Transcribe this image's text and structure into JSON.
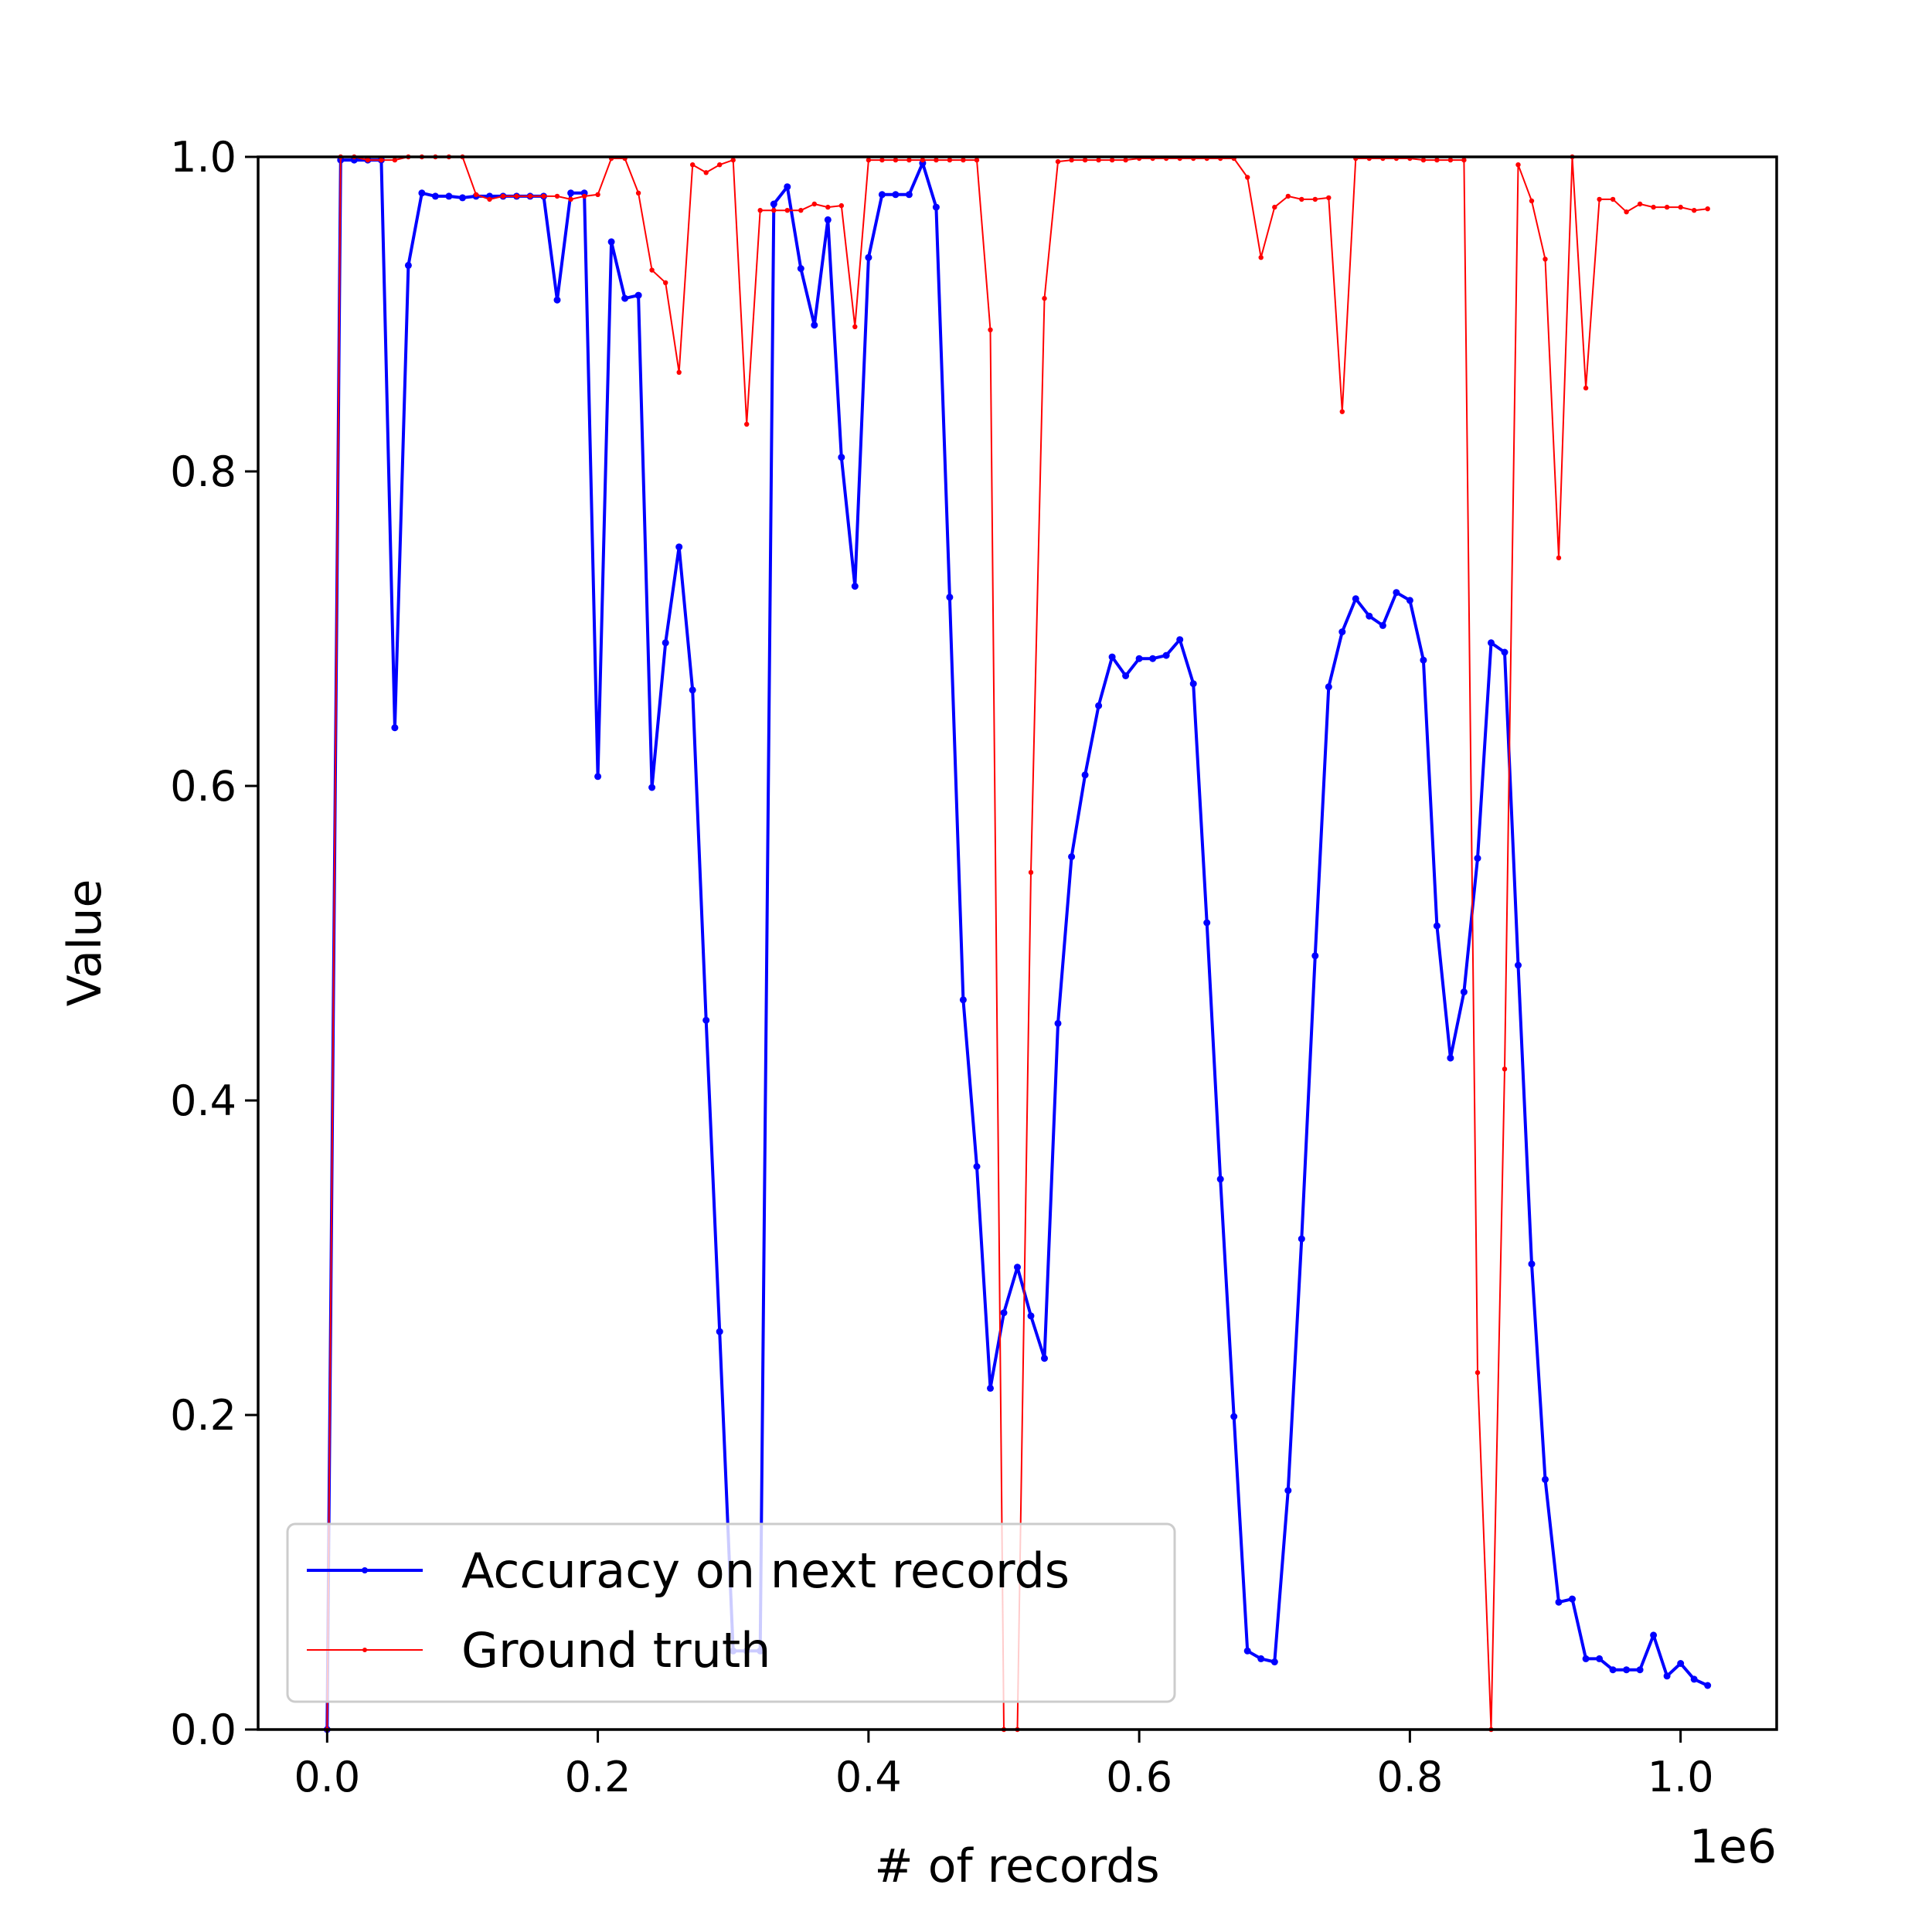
{
  "chart_data": {
    "type": "line",
    "title": "",
    "xlabel": "# of records",
    "ylabel": "Value",
    "x_offset_label": "1e6",
    "xlim": [
      -0.051,
      1.071
    ],
    "ylim": [
      0.0,
      1.0
    ],
    "x_ticks": [
      0.0,
      0.2,
      0.4,
      0.6,
      0.8,
      1.0
    ],
    "x_tick_labels": [
      "0.0",
      "0.2",
      "0.4",
      "0.6",
      "0.8",
      "1.0"
    ],
    "y_ticks": [
      0.0,
      0.2,
      0.4,
      0.6,
      0.8,
      1.0
    ],
    "y_tick_labels": [
      "0.0",
      "0.2",
      "0.4",
      "0.6",
      "0.8",
      "1.0"
    ],
    "grid": false,
    "legend_position": "lower-left",
    "x": [
      0.0,
      0.01,
      0.02,
      0.03,
      0.04,
      0.05,
      0.06,
      0.07,
      0.08,
      0.09,
      0.1,
      0.11,
      0.12,
      0.13,
      0.14,
      0.15,
      0.16,
      0.17,
      0.18,
      0.19,
      0.2,
      0.21,
      0.22,
      0.23,
      0.24,
      0.25,
      0.26,
      0.27,
      0.28,
      0.29,
      0.3,
      0.31,
      0.32,
      0.33,
      0.34,
      0.35,
      0.36,
      0.37,
      0.38,
      0.39,
      0.4,
      0.41,
      0.42,
      0.43,
      0.44,
      0.45,
      0.46,
      0.47,
      0.48,
      0.49,
      0.5,
      0.51,
      0.52,
      0.53,
      0.54,
      0.55,
      0.56,
      0.57,
      0.58,
      0.59,
      0.6,
      0.61,
      0.62,
      0.63,
      0.64,
      0.65,
      0.66,
      0.67,
      0.68,
      0.69,
      0.7,
      0.71,
      0.72,
      0.73,
      0.74,
      0.75,
      0.76,
      0.77,
      0.78,
      0.79,
      0.8,
      0.81,
      0.82,
      0.83,
      0.84,
      0.85,
      0.86,
      0.87,
      0.88,
      0.89,
      0.9,
      0.91,
      0.92,
      0.93,
      0.94,
      0.95,
      0.96,
      0.97,
      0.98,
      0.99,
      1.0,
      1.01,
      1.02
    ],
    "series": [
      {
        "name": "Accuracy on next records",
        "color": "#0000ff",
        "values": [
          0.0,
          0.998,
          0.998,
          0.998,
          0.998,
          0.637,
          0.931,
          0.977,
          0.975,
          0.975,
          0.974,
          0.975,
          0.975,
          0.975,
          0.975,
          0.975,
          0.975,
          0.909,
          0.977,
          0.977,
          0.606,
          0.946,
          0.91,
          0.912,
          0.599,
          0.691,
          0.752,
          0.661,
          0.451,
          0.253,
          0.05,
          0.05,
          0.05,
          0.97,
          0.981,
          0.929,
          0.893,
          0.96,
          0.809,
          0.727,
          0.936,
          0.976,
          0.976,
          0.976,
          0.996,
          0.968,
          0.72,
          0.464,
          0.358,
          0.217,
          0.265,
          0.294,
          0.263,
          0.236,
          0.449,
          0.555,
          0.607,
          0.651,
          0.682,
          0.67,
          0.681,
          0.681,
          0.683,
          0.693,
          0.665,
          0.513,
          0.35,
          0.199,
          0.05,
          0.045,
          0.043,
          0.152,
          0.312,
          0.492,
          0.663,
          0.698,
          0.719,
          0.708,
          0.702,
          0.723,
          0.718,
          0.68,
          0.511,
          0.427,
          0.469,
          0.554,
          0.691,
          0.685,
          0.486,
          0.296,
          0.159,
          0.081,
          0.083,
          0.045,
          0.045,
          0.038,
          0.038,
          0.038,
          0.06,
          0.034,
          0.042,
          0.032,
          0.028
        ]
      },
      {
        "name": "Ground truth",
        "color": "#ff0000",
        "values": [
          0.0,
          1.0,
          1.0,
          0.998,
          0.998,
          0.998,
          1.0,
          1.0,
          1.0,
          1.0,
          1.0,
          0.976,
          0.973,
          0.975,
          0.975,
          0.975,
          0.975,
          0.975,
          0.973,
          0.975,
          0.976,
          0.999,
          0.999,
          0.977,
          0.928,
          0.92,
          0.863,
          0.995,
          0.99,
          0.995,
          0.998,
          0.83,
          0.966,
          0.966,
          0.966,
          0.966,
          0.97,
          0.968,
          0.969,
          0.892,
          0.998,
          0.998,
          0.998,
          0.998,
          0.998,
          0.998,
          0.998,
          0.998,
          0.998,
          0.89,
          0.0,
          0.0,
          0.545,
          0.91,
          0.997,
          0.998,
          0.998,
          0.998,
          0.998,
          0.998,
          0.999,
          0.999,
          0.999,
          0.999,
          0.999,
          0.999,
          0.999,
          0.999,
          0.987,
          0.936,
          0.968,
          0.975,
          0.973,
          0.973,
          0.974,
          0.838,
          0.999,
          0.999,
          0.999,
          0.999,
          0.999,
          0.998,
          0.998,
          0.998,
          0.998,
          0.227,
          0.0,
          0.42,
          0.995,
          0.972,
          0.935,
          0.745,
          1.0,
          0.853,
          0.973,
          0.973,
          0.965,
          0.97,
          0.968,
          0.968,
          0.968,
          0.966,
          0.967
        ]
      }
    ]
  }
}
